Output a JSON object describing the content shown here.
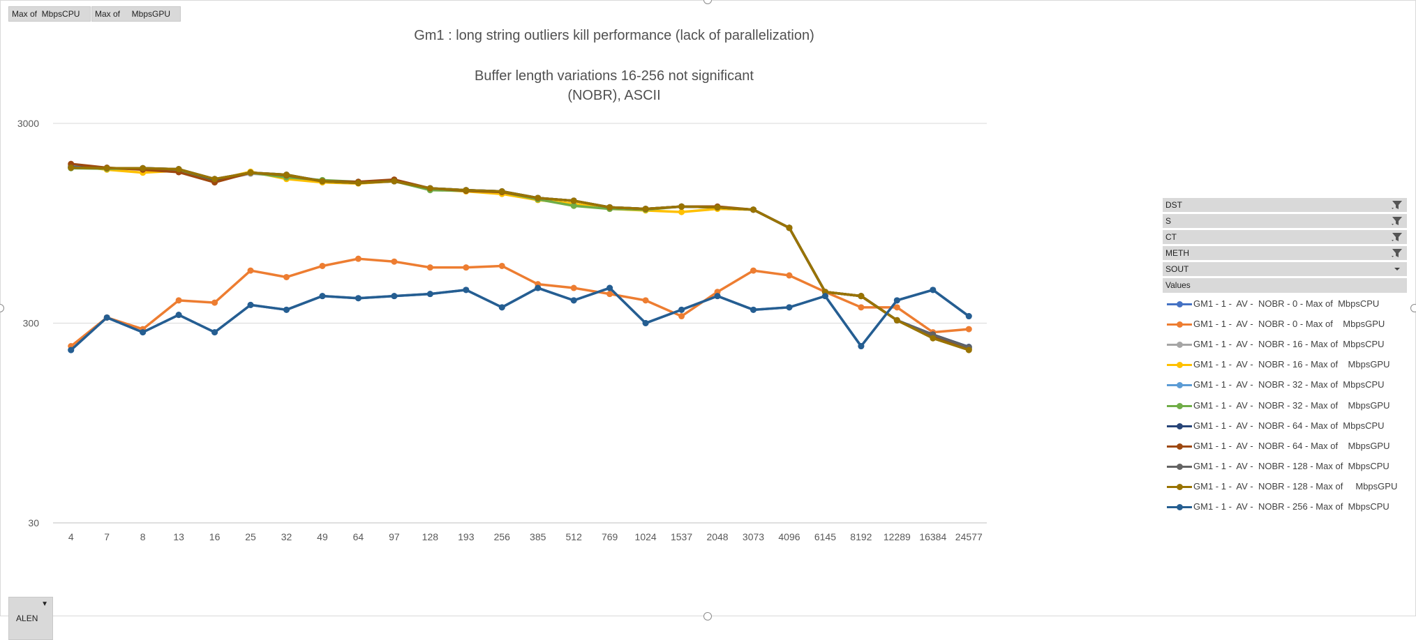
{
  "field_buttons": {
    "data_field_1": "Max of  MbpsCPU",
    "data_field_2": "Max of     MbpsGPU",
    "axis_field": "ALEN"
  },
  "filters": [
    {
      "label": "DST",
      "filtered": true
    },
    {
      "label": "S",
      "filtered": true
    },
    {
      "label": "CT",
      "filtered": true
    },
    {
      "label": "METH",
      "filtered": true
    },
    {
      "label": "SOUT",
      "filtered": false
    }
  ],
  "legend_header": "Values",
  "chart_data": {
    "type": "line",
    "title_lines": [
      "Gm1 : long string outliers kill performance (lack of parallelization)",
      "",
      "Buffer length variations 16-256 not significant",
      "(NOBR), ASCII"
    ],
    "y_scale": "log",
    "ylim": [
      30,
      3000
    ],
    "ytick_labels": [
      "3000",
      "300",
      "30"
    ],
    "grid": true,
    "legend_position": "right",
    "categories": [
      "4",
      "7",
      "8",
      "13",
      "16",
      "25",
      "32",
      "49",
      "64",
      "97",
      "128",
      "193",
      "256",
      "385",
      "512",
      "769",
      "1024",
      "1537",
      "2048",
      "3073",
      "4096",
      "6145",
      "8192",
      "12289",
      "16384",
      "24577"
    ],
    "series": [
      {
        "name": "GM1 - 1 -  AV -  NOBR - 0 - Max of  MbpsCPU",
        "color": "#4472C4",
        "values": [
          220,
          320,
          270,
          330,
          270,
          370,
          350,
          410,
          400,
          410,
          420,
          440,
          360,
          450,
          390,
          450,
          300,
          350,
          410,
          350,
          360,
          410,
          230,
          390,
          440,
          325
        ]
      },
      {
        "name": "GM1 - 1 -  AV -  NOBR - 0 - Max of    MbpsGPU",
        "color": "#ED7D31",
        "values": [
          230,
          320,
          280,
          390,
          380,
          550,
          510,
          580,
          630,
          610,
          570,
          570,
          580,
          470,
          450,
          420,
          390,
          325,
          430,
          550,
          520,
          430,
          360,
          360,
          270,
          280
        ]
      },
      {
        "name": "GM1 - 1 -  AV -  NOBR - 16 - Max of  MbpsCPU",
        "color": "#A5A5A5",
        "values": [
          1820,
          1780,
          1780,
          1760,
          1550,
          1680,
          1640,
          1540,
          1520,
          1540,
          1420,
          1390,
          1370,
          1270,
          1230,
          1140,
          1120,
          1150,
          1140,
          1110,
          900,
          430,
          410,
          310,
          260,
          225
        ]
      },
      {
        "name": "GM1 - 1 -  AV -  NOBR - 16 - Max of    MbpsGPU",
        "color": "#FFC000",
        "values": [
          1850,
          1760,
          1700,
          1740,
          1560,
          1720,
          1580,
          1520,
          1500,
          1540,
          1400,
          1370,
          1330,
          1240,
          1190,
          1120,
          1100,
          1080,
          1120,
          1110,
          900,
          430,
          410,
          310,
          255,
          222
        ]
      },
      {
        "name": "GM1 - 1 -  AV -  NOBR - 32 - Max of  MbpsCPU",
        "color": "#5B9BD5",
        "values": [
          1830,
          1780,
          1790,
          1770,
          1580,
          1700,
          1650,
          1550,
          1520,
          1540,
          1420,
          1390,
          1370,
          1270,
          1230,
          1140,
          1120,
          1150,
          1140,
          1110,
          900,
          430,
          410,
          310,
          262,
          228
        ]
      },
      {
        "name": "GM1 - 1 -  AV -  NOBR - 32 - Max of    MbpsGPU",
        "color": "#70AD47",
        "values": [
          1790,
          1780,
          1780,
          1750,
          1560,
          1700,
          1610,
          1560,
          1530,
          1540,
          1390,
          1380,
          1360,
          1250,
          1160,
          1120,
          1110,
          1150,
          1140,
          1110,
          900,
          430,
          410,
          310,
          258,
          224
        ]
      },
      {
        "name": "GM1 - 1 -  AV -  NOBR - 64 - Max of  MbpsCPU",
        "color": "#264478",
        "values": [
          1810,
          1790,
          1790,
          1770,
          1570,
          1700,
          1660,
          1540,
          1510,
          1540,
          1420,
          1390,
          1370,
          1270,
          1230,
          1140,
          1120,
          1150,
          1140,
          1110,
          900,
          430,
          410,
          310,
          263,
          228
        ]
      },
      {
        "name": "GM1 - 1 -  AV -  NOBR - 64 - Max of    MbpsGPU",
        "color": "#9E480E",
        "values": [
          1880,
          1800,
          1760,
          1710,
          1520,
          1700,
          1650,
          1540,
          1530,
          1570,
          1420,
          1380,
          1360,
          1270,
          1230,
          1140,
          1120,
          1150,
          1150,
          1110,
          900,
          430,
          410,
          310,
          255,
          222
        ]
      },
      {
        "name": "GM1 - 1 -  AV -  NOBR - 128 - Max of  MbpsCPU",
        "color": "#636363",
        "values": [
          1800,
          1790,
          1790,
          1770,
          1580,
          1700,
          1660,
          1540,
          1510,
          1540,
          1420,
          1390,
          1370,
          1270,
          1230,
          1140,
          1120,
          1150,
          1140,
          1110,
          900,
          430,
          410,
          310,
          262,
          227
        ]
      },
      {
        "name": "GM1 - 1 -  AV -  NOBR - 128 - Max of     MbpsGPU",
        "color": "#997300",
        "values": [
          1800,
          1790,
          1790,
          1770,
          1580,
          1700,
          1660,
          1540,
          1510,
          1540,
          1420,
          1390,
          1370,
          1270,
          1230,
          1140,
          1120,
          1150,
          1140,
          1110,
          900,
          430,
          410,
          310,
          252,
          220
        ]
      },
      {
        "name": "GM1 - 1 -  AV -  NOBR - 256 - Max of  MbpsCPU",
        "color": "#255E91",
        "values": [
          220,
          320,
          270,
          330,
          270,
          370,
          350,
          410,
          400,
          410,
          420,
          440,
          360,
          450,
          390,
          450,
          300,
          350,
          410,
          350,
          360,
          410,
          230,
          390,
          440,
          325
        ]
      }
    ],
    "drawn_on_top_color": "#43682B"
  }
}
